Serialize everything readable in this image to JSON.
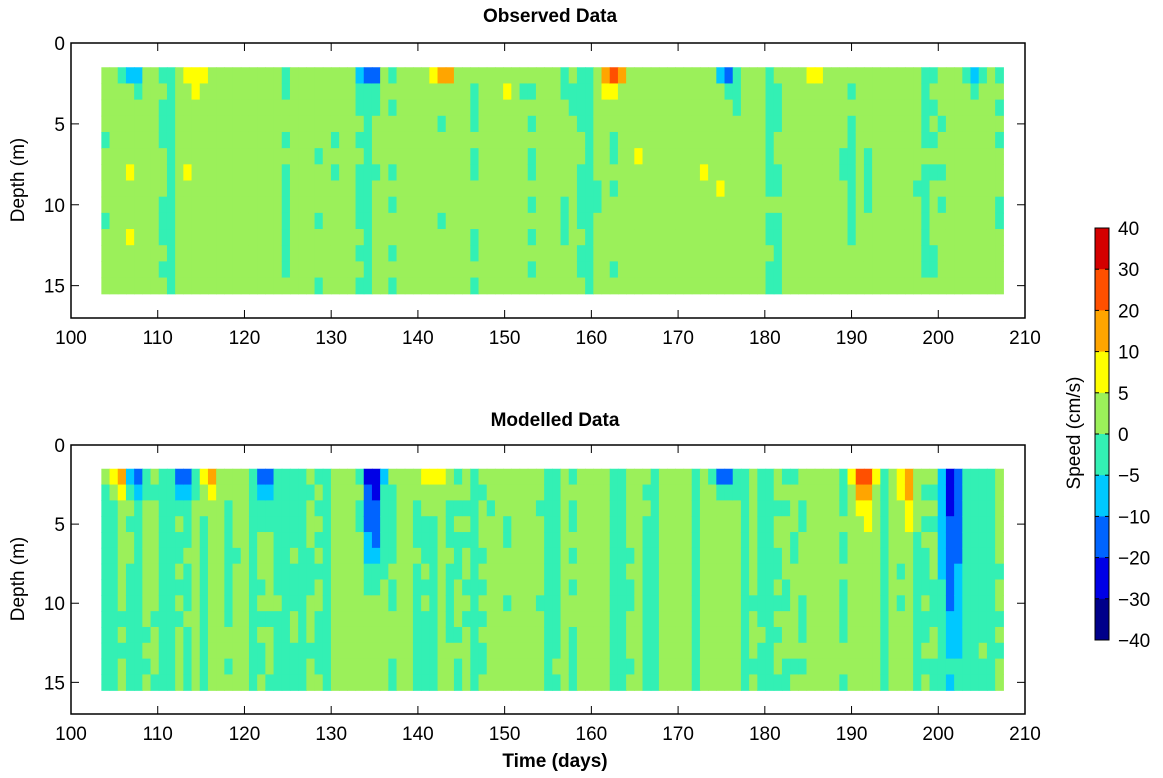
{
  "chart_data": [
    {
      "type": "heatmap",
      "title": "Observed Data",
      "xlabel": "",
      "ylabel": "Depth (m)",
      "xlim": [
        100,
        210
      ],
      "ylim": [
        0,
        17
      ],
      "y_reversed": true,
      "data_extent": {
        "x": [
          103.5,
          207.5
        ],
        "y": [
          1.5,
          15.5
        ]
      },
      "xticks": [
        100,
        110,
        120,
        130,
        140,
        150,
        160,
        170,
        180,
        190,
        200,
        210
      ],
      "yticks": [
        0,
        5,
        10,
        15
      ],
      "dominant_range": "0 to 5 cm/s",
      "surface_features": [
        {
          "day": 107,
          "depth": 1.7,
          "value": -15
        },
        {
          "day": 115,
          "depth": 2.2,
          "value": 8
        },
        {
          "day": 134.5,
          "depth": 1.8,
          "value": -20
        },
        {
          "day": 143,
          "depth": 1.8,
          "value": 18
        },
        {
          "day": 162.5,
          "depth": 2.5,
          "value": 25
        },
        {
          "day": 175.5,
          "depth": 2.2,
          "value": -18
        },
        {
          "day": 185,
          "depth": 2.2,
          "value": 8
        },
        {
          "day": 204,
          "depth": 2.4,
          "value": -15
        }
      ]
    },
    {
      "type": "heatmap",
      "title": "Modelled Data",
      "xlabel": "Time (days)",
      "ylabel": "Depth (m)",
      "xlim": [
        100,
        210
      ],
      "ylim": [
        0,
        17
      ],
      "y_reversed": true,
      "data_extent": {
        "x": [
          103.5,
          207.5
        ],
        "y": [
          1.5,
          15.5
        ]
      },
      "xticks": [
        100,
        110,
        120,
        130,
        140,
        150,
        160,
        170,
        180,
        190,
        200,
        210
      ],
      "yticks": [
        0,
        5,
        10,
        15
      ],
      "dominant_range": "-5 to 5 cm/s",
      "surface_features": [
        {
          "day": 105.5,
          "depth": 3,
          "value": 15
        },
        {
          "day": 107.5,
          "depth": 2.6,
          "value": -15
        },
        {
          "day": 113,
          "depth": 2.5,
          "value": -15
        },
        {
          "day": 116,
          "depth": 2.6,
          "value": 12
        },
        {
          "day": 122.5,
          "depth": 3,
          "value": -18
        },
        {
          "day": 134.8,
          "depth": 7,
          "value": -32
        },
        {
          "day": 141.5,
          "depth": 3,
          "value": 12
        },
        {
          "day": 175.5,
          "depth": 2.4,
          "value": -22
        },
        {
          "day": 191.5,
          "depth": 3,
          "value": 28
        },
        {
          "day": 196.5,
          "depth": 4,
          "value": 15
        },
        {
          "day": 201.5,
          "depth": 12,
          "value": -22
        }
      ]
    }
  ],
  "colorbar": {
    "label": "Speed (cm/s)",
    "ticks": [
      "40",
      "30",
      "20",
      "10",
      "5",
      "0",
      "−5",
      "−10",
      "−20",
      "−30",
      "−40"
    ],
    "colors": [
      "#d40000",
      "#ff5000",
      "#ffa500",
      "#ffff00",
      "#9bf05a",
      "#33f0b4",
      "#00c8ff",
      "#0064ff",
      "#0000e6",
      "#00008a"
    ]
  }
}
